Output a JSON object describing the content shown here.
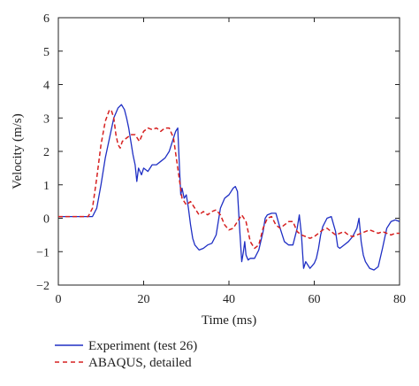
{
  "chart_data": {
    "type": "line",
    "xlabel": "Time (ms)",
    "ylabel": "Velocity (m/s)",
    "xlim": [
      0,
      80
    ],
    "ylim": [
      -2,
      6
    ],
    "xticks": [
      "0",
      "20",
      "40",
      "60",
      "80"
    ],
    "yticks": [
      "−2",
      "−1",
      "0",
      "1",
      "2",
      "3",
      "4",
      "5",
      "6"
    ],
    "grid": false,
    "legend_position": "below",
    "series": [
      {
        "name": "Experiment (test 26)",
        "color": "#1f2fc4",
        "style": "solid",
        "x": [
          0,
          8,
          9,
          10,
          11,
          12,
          13,
          14,
          14.8,
          15.5,
          16,
          16.5,
          17,
          17.5,
          18,
          18.4,
          18.8,
          19.5,
          20,
          21,
          22,
          23,
          24,
          25,
          26,
          27,
          27.5,
          28,
          28.3,
          28.7,
          29,
          29.5,
          30,
          30.5,
          31,
          31.5,
          32,
          33,
          34,
          35,
          36,
          37,
          38,
          39,
          40,
          40.5,
          41,
          41.5,
          42,
          42.5,
          43,
          43.4,
          43.7,
          44,
          44.5,
          45,
          46,
          47,
          48,
          48.5,
          49,
          50,
          51,
          52,
          53,
          54,
          55,
          56,
          56.5,
          57,
          57.5,
          58,
          59,
          60,
          60.5,
          61,
          61.5,
          62,
          63,
          64,
          65,
          65.5,
          66,
          67,
          68,
          69,
          70,
          70.5,
          71,
          71.5,
          72,
          73,
          74,
          75,
          76,
          77,
          78,
          79,
          80
        ],
        "y": [
          0.05,
          0.05,
          0.3,
          1.0,
          1.8,
          2.4,
          3.0,
          3.3,
          3.4,
          3.25,
          3.0,
          2.7,
          2.3,
          1.9,
          1.6,
          1.1,
          1.5,
          1.3,
          1.5,
          1.4,
          1.6,
          1.6,
          1.7,
          1.8,
          2.0,
          2.4,
          2.6,
          2.7,
          1.8,
          0.7,
          0.9,
          0.6,
          0.7,
          0.3,
          -0.2,
          -0.6,
          -0.8,
          -0.95,
          -0.9,
          -0.8,
          -0.75,
          -0.5,
          0.3,
          0.6,
          0.7,
          0.8,
          0.9,
          0.95,
          0.8,
          -0.3,
          -1.3,
          -1.0,
          -0.7,
          -1.1,
          -1.25,
          -1.2,
          -1.2,
          -0.95,
          -0.4,
          0.0,
          0.1,
          0.15,
          0.15,
          -0.3,
          -0.7,
          -0.8,
          -0.8,
          -0.3,
          0.1,
          -0.5,
          -1.5,
          -1.3,
          -1.5,
          -1.35,
          -1.2,
          -0.9,
          -0.5,
          -0.25,
          0.0,
          0.05,
          -0.4,
          -0.85,
          -0.9,
          -0.8,
          -0.7,
          -0.55,
          -0.3,
          0.0,
          -0.7,
          -1.1,
          -1.3,
          -1.5,
          -1.55,
          -1.45,
          -0.9,
          -0.3,
          -0.1,
          -0.05,
          -0.1
        ]
      },
      {
        "name": "ABAQUS, detailed",
        "color": "#d62020",
        "style": "dashed",
        "x": [
          0,
          7,
          8,
          9,
          10,
          11,
          12,
          12.5,
          13,
          13.5,
          14,
          14.5,
          15,
          16,
          17,
          18,
          19,
          20,
          21,
          22,
          23,
          24,
          25,
          26,
          27,
          28,
          29,
          30,
          31,
          32,
          33,
          34,
          35,
          36,
          37,
          38,
          39,
          40,
          41,
          42,
          43,
          44,
          45,
          46,
          47,
          48,
          49,
          50,
          51,
          52,
          53,
          54,
          55,
          56,
          57,
          58,
          59,
          60,
          61,
          62,
          63,
          64,
          65,
          66,
          67,
          68,
          69,
          70,
          71,
          72,
          73,
          74,
          75,
          76,
          77,
          78,
          79,
          80
        ],
        "y": [
          0.05,
          0.05,
          0.3,
          1.2,
          2.2,
          2.9,
          3.25,
          3.2,
          3.0,
          2.5,
          2.2,
          2.1,
          2.3,
          2.4,
          2.5,
          2.5,
          2.3,
          2.6,
          2.7,
          2.65,
          2.7,
          2.6,
          2.7,
          2.7,
          2.4,
          1.5,
          0.6,
          0.4,
          0.5,
          0.3,
          0.1,
          0.2,
          0.1,
          0.2,
          0.25,
          0.1,
          -0.2,
          -0.35,
          -0.3,
          -0.1,
          0.1,
          -0.1,
          -0.7,
          -0.9,
          -0.8,
          -0.3,
          0.0,
          0.05,
          -0.2,
          -0.3,
          -0.2,
          -0.1,
          -0.1,
          -0.4,
          -0.5,
          -0.55,
          -0.6,
          -0.55,
          -0.45,
          -0.35,
          -0.3,
          -0.4,
          -0.5,
          -0.45,
          -0.4,
          -0.5,
          -0.55,
          -0.5,
          -0.45,
          -0.4,
          -0.35,
          -0.4,
          -0.45,
          -0.4,
          -0.45,
          -0.5,
          -0.45,
          -0.45
        ]
      }
    ]
  }
}
